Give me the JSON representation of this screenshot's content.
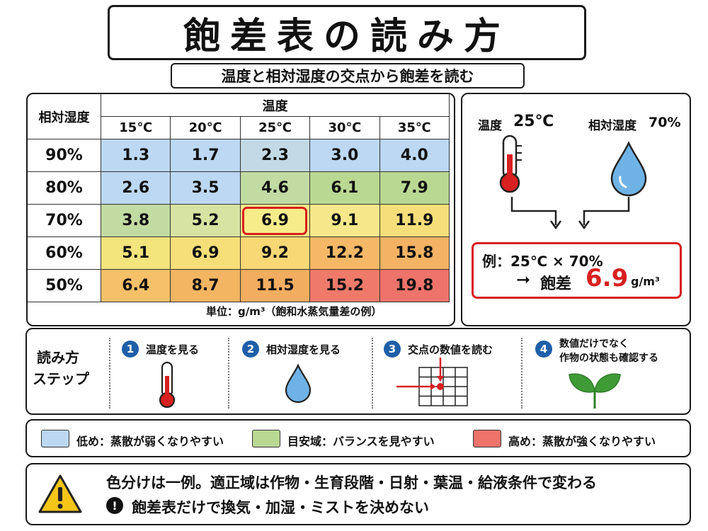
{
  "title": "飽差表の読み方",
  "subtitle": "温度と相対湿度の交点から飽差を読む",
  "table": {
    "row_header_label": "相対湿度",
    "col_header_label": "温度",
    "temperatures": [
      "15℃",
      "20℃",
      "25℃",
      "30℃",
      "35℃"
    ],
    "humidities": [
      "90%",
      "80%",
      "70%",
      "60%",
      "50%"
    ],
    "values": [
      [
        "1.3",
        "1.7",
        "2.3",
        "3.0",
        "4.0"
      ],
      [
        "2.6",
        "3.5",
        "4.6",
        "6.1",
        "7.9"
      ],
      [
        "3.8",
        "5.2",
        "6.9",
        "9.1",
        "11.9"
      ],
      [
        "5.1",
        "6.9",
        "9.2",
        "12.2",
        "15.8"
      ],
      [
        "6.4",
        "8.7",
        "11.5",
        "15.2",
        "19.8"
      ]
    ],
    "cell_colors": [
      [
        "#bcd8f2",
        "#bcd8f2",
        "#c3d9e6",
        "#bcd8f2",
        "#bcd8f2"
      ],
      [
        "#bcd8f2",
        "#bcd8f2",
        "#c2dba2",
        "#b9d892",
        "#b9d892"
      ],
      [
        "#c2dba2",
        "#d7e3a2",
        "#f7ec8a",
        "#f6e88a",
        "#f6df7a"
      ],
      [
        "#f4e47c",
        "#f6df78",
        "#f7d874",
        "#f5b866",
        "#f3b264"
      ],
      [
        "#f6c069",
        "#f4b563",
        "#f3ad60",
        "#ef7a6a",
        "#ee736a"
      ]
    ],
    "highlighted_cell": {
      "row": 2,
      "col": 2
    },
    "unit_note": "単位：g/m³（飽和水蒸気量差の例）"
  },
  "example": {
    "temp_label": "温度",
    "temp_value": "25℃",
    "humidity_label": "相対湿度",
    "humidity_value": "70%",
    "result_line1": "例：25℃ × 70%",
    "result_arrow": "➞",
    "result_label": "飽差",
    "result_value": "6.9",
    "result_unit": "g/m³",
    "result_color": "#d82020"
  },
  "steps": {
    "heading_line1": "読み方",
    "heading_line2": "ステップ",
    "items": [
      {
        "num": "1",
        "label": "温度を見る",
        "icon": "thermometer-icon"
      },
      {
        "num": "2",
        "label": "相対湿度を見る",
        "icon": "water-drop-icon"
      },
      {
        "num": "3",
        "label": "交点の数値を読む",
        "icon": "grid-intersection-icon"
      },
      {
        "num": "4",
        "label_line1": "数値だけでなく",
        "label_line2": "作物の状態も確認する",
        "icon": "leaf-icon"
      }
    ]
  },
  "legend": [
    {
      "color": "#bcd8f2",
      "text": "低め：蒸散が弱くなりやすい"
    },
    {
      "color": "#b9d892",
      "text": "目安域：バランスを見やすい"
    },
    {
      "color": "#ee736a",
      "text": "高め：蒸散が強くなりやすい"
    }
  ],
  "note": {
    "line1": "色分けは一例。適正域は作物・生育段階・日射・葉温・給液条件で変わる",
    "line2_icon": "!",
    "line2": "飽差表だけで換気・加湿・ミストを決めない",
    "icon": "warning-icon"
  }
}
